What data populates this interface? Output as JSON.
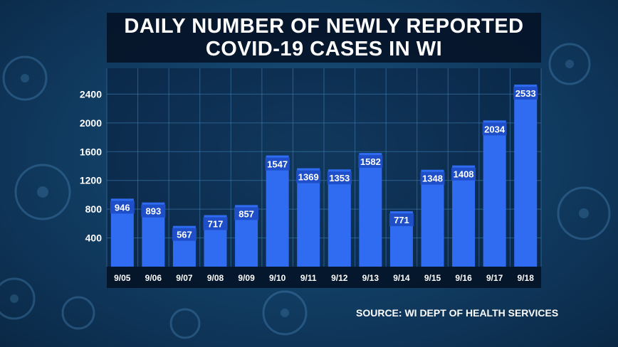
{
  "colors": {
    "bar": "#2f6cf2",
    "label_bg": "#1f4fc8",
    "grid": "#3f7fb6",
    "background": "#123f66"
  },
  "title": {
    "line1": "DAILY NUMBER OF NEWLY REPORTED",
    "line2": "COVID-19 CASES IN WI"
  },
  "source": "SOURCE: WI DEPT OF HEALTH SERVICES",
  "chart_data": {
    "type": "bar",
    "title": "DAILY NUMBER OF NEWLY REPORTED COVID-19 CASES IN WI",
    "xlabel": "",
    "ylabel": "",
    "categories": [
      "9/05",
      "9/06",
      "9/07",
      "9/08",
      "9/09",
      "9/10",
      "9/11",
      "9/12",
      "9/13",
      "9/14",
      "9/15",
      "9/16",
      "9/17",
      "9/18"
    ],
    "values": [
      946,
      893,
      567,
      717,
      857,
      1547,
      1369,
      1353,
      1582,
      771,
      1348,
      1408,
      2034,
      2533
    ],
    "yticks": [
      400,
      800,
      1200,
      1600,
      2000,
      2400
    ],
    "ylim": [
      0,
      2760
    ],
    "grid": true,
    "legend": "none"
  }
}
